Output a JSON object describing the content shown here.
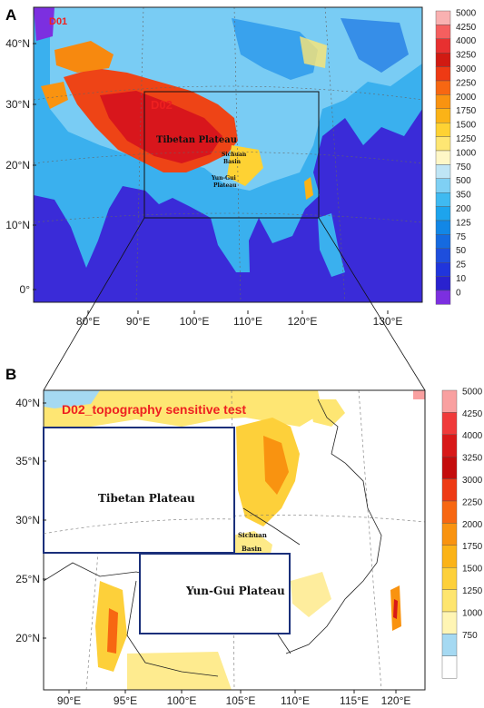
{
  "panel_a": {
    "label": "A",
    "domain_labels": [
      "D01",
      "D02"
    ],
    "region_labels": {
      "tibetan": "Tibetan Plateau",
      "sichuan_1": "Sichuan",
      "sichuan_2": "Basin",
      "yungui_1": "Yun-Gui",
      "yungui_2": "Plateau"
    },
    "lat_ticks": [
      "40°N",
      "30°N",
      "20°N",
      "10°N",
      "0°"
    ],
    "lon_ticks": [
      "80°E",
      "90°E",
      "100°E",
      "110°E",
      "120°E",
      "130°E"
    ],
    "colorbar": {
      "labels": [
        "5000",
        "4250",
        "4000",
        "3250",
        "3000",
        "2250",
        "2000",
        "1750",
        "1500",
        "1250",
        "1000",
        "750",
        "500",
        "350",
        "200",
        "125",
        "75",
        "50",
        "25",
        "10",
        "0"
      ],
      "colors": [
        "#f9b1b1",
        "#f55f5f",
        "#e83030",
        "#d11a12",
        "#ee3a14",
        "#f76712",
        "#f99310",
        "#fbb317",
        "#fed233",
        "#fee673",
        "#fff7c6",
        "#bfe5f5",
        "#7fd0f4",
        "#3fbaf1",
        "#1da4ed",
        "#1287e6",
        "#156ae0",
        "#1e4edd",
        "#2035dc",
        "#2a22cf",
        "#7c2fe0"
      ]
    }
  },
  "panel_b": {
    "label": "B",
    "title": "D02_topography sensitive test",
    "region_labels": {
      "tibetan": "Tibetan Plateau",
      "yungui": "Yun-Gui Plateau",
      "sichuan_1": "Sichuan",
      "sichuan_2": "Basin"
    },
    "lat_ticks": [
      "40°N",
      "35°N",
      "30°N",
      "25°N",
      "20°N"
    ],
    "lon_ticks": [
      "90°E",
      "95°E",
      "100°E",
      "105°E",
      "110°E",
      "115°E",
      "120°E"
    ],
    "colorbar": {
      "labels": [
        "5000",
        "4250",
        "4000",
        "3250",
        "3000",
        "2250",
        "2000",
        "1750",
        "1500",
        "1250",
        "1000",
        "750"
      ],
      "colors": [
        "#f9a0a0",
        "#f03a3a",
        "#d81818",
        "#c40c0c",
        "#ee3a14",
        "#f76712",
        "#f99310",
        "#fbb317",
        "#fdd03a",
        "#fee56e",
        "#fff5b4",
        "#a5d9f2",
        "#ffffff"
      ]
    }
  }
}
